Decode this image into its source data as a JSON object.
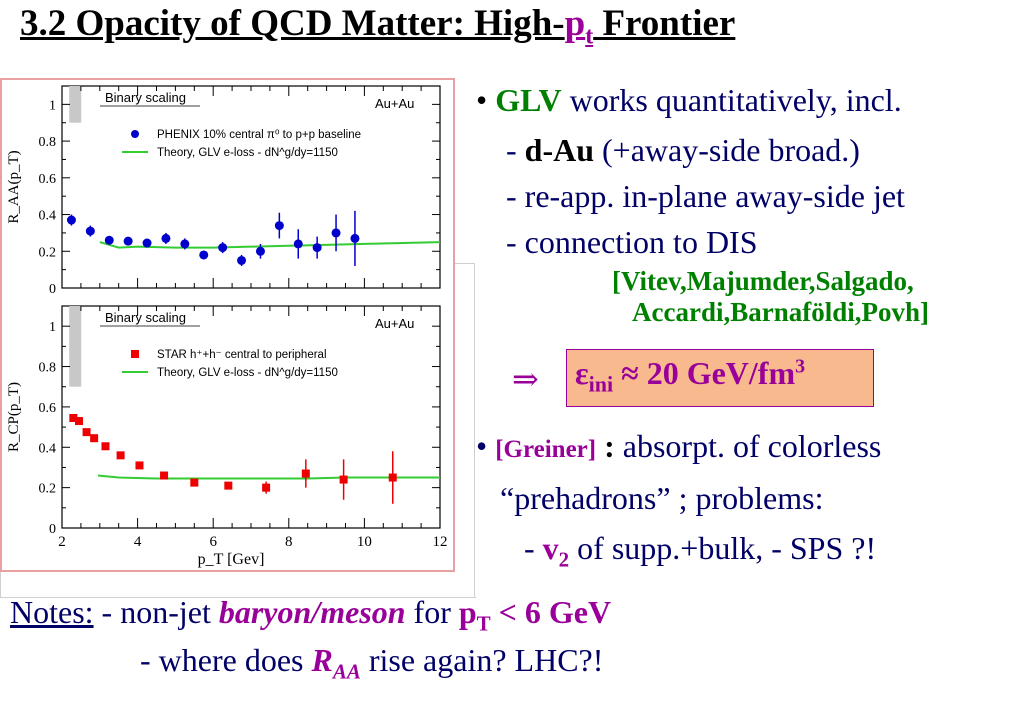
{
  "title": {
    "prefix": "3.2  Opacity of QCD Matter: High-",
    "p": "p",
    "t": "t",
    "suffix": " Frontier"
  },
  "bullets": {
    "b1_bullet": "•",
    "b1_glv": "GLV",
    "b1_rest": " works quantitatively, incl.",
    "b2_dash": "- ",
    "b2_dau": "d-Au",
    "b2_rest": " (+away-side broad.)",
    "b3": "- re-app. in-plane away-side jet",
    "b4": "- connection to DIS",
    "ref1": "[Vitev,Majumder,Salgado,",
    "ref2": "Accardi,Barnaföldi,Povh]",
    "arrow": "⇒",
    "eps_main": "ε",
    "eps_sub": "ini",
    "eps_rest": " ≈ 20 GeV/fm",
    "eps_sup": "3",
    "g_bullet": "•",
    "g_name": "[Greiner]",
    "g_colon": " :",
    "g_rest": " absorpt. of colorless",
    "g_line2": "“prehadrons” ;  problems:",
    "g_line3a": "- ",
    "g_v": "v",
    "g_v_sub": "2",
    "g_line3b": " of supp.+bulk,   - SPS ?!"
  },
  "notes": {
    "label": "Notes:",
    "l1a": "  - non-jet ",
    "l1b": "baryon/meson",
    "l1c": " for  ",
    "l1pt": "p",
    "l1pt_sub": "T",
    "l1d": " < 6 GeV",
    "l2a": "- where does ",
    "l2r": "R",
    "l2r_sub": "AA",
    "l2b": " rise again?     LHC?!"
  },
  "chart_data": [
    {
      "type": "scatter",
      "ylabel": "R_AA(p_T)",
      "ylim": [
        0,
        1.1
      ],
      "xlim": [
        2,
        12
      ],
      "yticks": [
        "0",
        "0.2",
        "0.4",
        "0.6",
        "0.8",
        "1"
      ],
      "legend": [
        "Binary scaling",
        "PHENIX 10% central π⁰ to p+p baseline",
        "Theory, GLV e-loss - dN^g/dy=1150"
      ],
      "system": "Au+Au",
      "colors": {
        "data": "#0000cc",
        "theory": "#33cc33",
        "band": "#c8c8c8"
      },
      "series": [
        {
          "name": "PHENIX 10% central π⁰ to p+p baseline",
          "points": [
            [
              2.25,
              0.37,
              0.03
            ],
            [
              2.75,
              0.31,
              0.03
            ],
            [
              3.25,
              0.26,
              0.02
            ],
            [
              3.75,
              0.255,
              0.02
            ],
            [
              4.25,
              0.245,
              0.02
            ],
            [
              4.75,
              0.27,
              0.03
            ],
            [
              5.25,
              0.24,
              0.03
            ],
            [
              5.75,
              0.18,
              0.02
            ],
            [
              6.25,
              0.22,
              0.03
            ],
            [
              6.75,
              0.15,
              0.03
            ],
            [
              7.25,
              0.2,
              0.04
            ],
            [
              7.75,
              0.34,
              0.07
            ],
            [
              8.25,
              0.24,
              0.08
            ],
            [
              8.75,
              0.22,
              0.06
            ],
            [
              9.25,
              0.3,
              0.1
            ],
            [
              9.75,
              0.27,
              0.15
            ]
          ]
        },
        {
          "name": "Theory, GLV e-loss - dN^g/dy=1150",
          "line": [
            [
              3.0,
              0.25
            ],
            [
              3.5,
              0.22
            ],
            [
              4.0,
              0.225
            ],
            [
              5.0,
              0.22
            ],
            [
              6.0,
              0.22
            ],
            [
              7.0,
              0.225
            ],
            [
              8.0,
              0.23
            ],
            [
              9.0,
              0.235
            ],
            [
              10.0,
              0.24
            ],
            [
              11.0,
              0.245
            ],
            [
              12.0,
              0.25
            ]
          ]
        }
      ],
      "band": {
        "x": 2.35,
        "ylo": 0.9,
        "yhi": 1.1
      }
    },
    {
      "type": "scatter",
      "ylabel": "R_CP(p_T)",
      "xlabel": "p_T [Gev]",
      "ylim": [
        0,
        1.1
      ],
      "xlim": [
        2,
        12
      ],
      "xticks": [
        "2",
        "4",
        "6",
        "8",
        "10",
        "12"
      ],
      "yticks": [
        "0",
        "0.2",
        "0.4",
        "0.6",
        "0.8",
        "1"
      ],
      "legend": [
        "Binary scaling",
        "STAR h⁺+h⁻ central to peripheral",
        "Theory, GLV e-loss - dN^g/dy=1150"
      ],
      "system": "Au+Au",
      "colors": {
        "data": "#ee0000",
        "theory": "#33cc33",
        "band": "#c8c8c8"
      },
      "series": [
        {
          "name": "STAR h⁺+h⁻ central to peripheral",
          "points": [
            [
              2.3,
              0.545,
              0.01
            ],
            [
              2.45,
              0.53,
              0.01
            ],
            [
              2.65,
              0.475,
              0.01
            ],
            [
              2.85,
              0.445,
              0.01
            ],
            [
              3.15,
              0.405,
              0.01
            ],
            [
              3.55,
              0.36,
              0.01
            ],
            [
              4.05,
              0.31,
              0.01
            ],
            [
              4.7,
              0.26,
              0.01
            ],
            [
              5.5,
              0.225,
              0.01
            ],
            [
              6.4,
              0.21,
              0.01
            ],
            [
              7.4,
              0.2,
              0.03
            ],
            [
              8.45,
              0.27,
              0.07
            ],
            [
              9.45,
              0.24,
              0.1
            ],
            [
              10.75,
              0.25,
              0.13
            ]
          ]
        },
        {
          "name": "Theory, GLV e-loss - dN^g/dy=1150",
          "line": [
            [
              2.95,
              0.26
            ],
            [
              3.5,
              0.25
            ],
            [
              4.5,
              0.245
            ],
            [
              5.5,
              0.245
            ],
            [
              6.5,
              0.245
            ],
            [
              7.5,
              0.245
            ],
            [
              8.5,
              0.245
            ],
            [
              9.5,
              0.25
            ],
            [
              10.5,
              0.25
            ],
            [
              12.0,
              0.25
            ]
          ]
        }
      ],
      "band": {
        "x": 2.35,
        "ylo": 0.7,
        "yhi": 1.1
      }
    }
  ]
}
